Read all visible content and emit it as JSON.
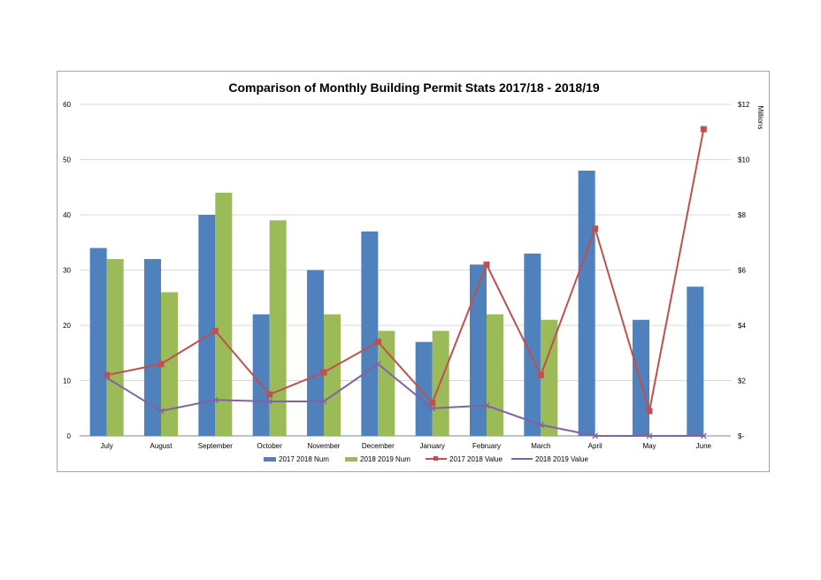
{
  "chart_data": {
    "type": "bar",
    "title": "Comparison of Monthly Building Permit Stats 2017/18 - 2018/19",
    "categories": [
      "July",
      "August",
      "September",
      "October",
      "November",
      "December",
      "January",
      "February",
      "March",
      "April",
      "May",
      "June"
    ],
    "y_left": {
      "range": [
        0,
        60
      ],
      "ticks": [
        "0",
        "10",
        "20",
        "30",
        "40",
        "50",
        "60"
      ]
    },
    "y_right": {
      "label": "Millions",
      "range": [
        0,
        12
      ],
      "ticks": [
        "$-",
        "$2",
        "$4",
        "$6",
        "$8",
        "$10",
        "$12"
      ]
    },
    "gridlines": true,
    "legend_position": "bottom",
    "series": [
      {
        "name": "2017 2018 Num",
        "kind": "bar",
        "axis": "left",
        "color": "#4f81bd",
        "values": [
          34,
          32,
          40,
          22,
          30,
          37,
          17,
          31,
          33,
          48,
          21,
          27
        ]
      },
      {
        "name": "2018 2019 Num",
        "kind": "bar",
        "axis": "left",
        "color": "#9bbb59",
        "values": [
          32,
          26,
          44,
          39,
          22,
          19,
          19,
          22,
          21,
          null,
          null,
          null
        ]
      },
      {
        "name": "2017 2018 Value",
        "kind": "line",
        "axis": "right",
        "color": "#c0504d",
        "values": [
          2.2,
          2.6,
          3.8,
          1.5,
          2.3,
          3.4,
          1.2,
          6.2,
          2.2,
          7.5,
          0.9,
          11.1
        ]
      },
      {
        "name": "2018 2019 Value",
        "kind": "line",
        "axis": "right",
        "color": "#8064a2",
        "values": [
          2.1,
          0.9,
          1.3,
          1.25,
          1.25,
          2.6,
          1.0,
          1.1,
          0.4,
          0.0,
          0.0,
          0.0
        ]
      }
    ]
  }
}
